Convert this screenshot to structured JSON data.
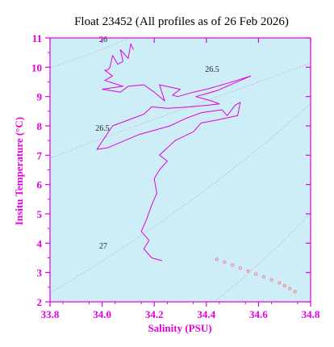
{
  "chart_data": {
    "type": "line",
    "title": "Float 23452  (All profiles as of 26 Feb 2026)",
    "xlabel": "Salinity (PSU)",
    "ylabel": "Insitu Temperature (°C)",
    "xlim": [
      33.8,
      34.8
    ],
    "ylim": [
      2,
      11
    ],
    "xticks": [
      "33.8",
      "34.0",
      "34.2",
      "34.4",
      "34.6",
      "34.8"
    ],
    "yticks": [
      "2",
      "3",
      "4",
      "5",
      "6",
      "7",
      "8",
      "9",
      "10",
      "11"
    ],
    "grid": false,
    "contour_labels": [
      "26",
      "26.5",
      "26.5",
      "27"
    ],
    "series": [
      {
        "kind": "line",
        "points": [
          [
            34.12,
            10.6
          ],
          [
            34.11,
            10.8
          ],
          [
            34.1,
            10.3
          ],
          [
            34.07,
            10.6
          ],
          [
            34.08,
            10.2
          ],
          [
            34.06,
            10.1
          ],
          [
            34.04,
            10.4
          ],
          [
            34.03,
            10.0
          ],
          [
            34.02,
            9.9
          ],
          [
            34.01,
            9.9
          ],
          [
            34.04,
            9.7
          ],
          [
            34.01,
            9.55
          ],
          [
            34.08,
            9.35
          ],
          [
            34.0,
            9.25
          ],
          [
            34.07,
            9.15
          ],
          [
            34.1,
            9.35
          ],
          [
            34.16,
            9.4
          ],
          [
            34.2,
            9.15
          ],
          [
            34.24,
            8.85
          ],
          [
            34.22,
            9.4
          ],
          [
            34.3,
            9.25
          ],
          [
            34.27,
            9.05
          ],
          [
            34.29,
            9.0
          ],
          [
            34.35,
            9.15
          ],
          [
            34.4,
            9.25
          ],
          [
            34.48,
            9.45
          ],
          [
            34.57,
            9.7
          ],
          [
            34.44,
            9.2
          ],
          [
            34.36,
            9.0
          ],
          [
            34.42,
            8.85
          ],
          [
            34.45,
            8.75
          ],
          [
            34.4,
            8.7
          ],
          [
            34.34,
            8.65
          ],
          [
            34.25,
            8.6
          ],
          [
            34.19,
            8.65
          ],
          [
            34.16,
            8.4
          ],
          [
            34.04,
            8.0
          ],
          [
            33.98,
            7.2
          ],
          [
            34.02,
            7.25
          ],
          [
            34.06,
            7.4
          ],
          [
            34.14,
            7.7
          ],
          [
            34.2,
            7.85
          ],
          [
            34.26,
            8.0
          ],
          [
            34.32,
            8.25
          ],
          [
            34.38,
            8.45
          ],
          [
            34.46,
            8.55
          ],
          [
            34.48,
            8.35
          ],
          [
            34.51,
            8.7
          ],
          [
            34.53,
            8.8
          ],
          [
            34.52,
            8.35
          ],
          [
            34.44,
            8.2
          ],
          [
            34.38,
            8.1
          ],
          [
            34.35,
            7.8
          ],
          [
            34.28,
            7.5
          ],
          [
            34.22,
            7.0
          ],
          [
            34.25,
            6.8
          ],
          [
            34.22,
            6.5
          ],
          [
            34.2,
            6.2
          ],
          [
            34.21,
            5.7
          ],
          [
            34.19,
            5.3
          ],
          [
            34.17,
            4.8
          ],
          [
            34.15,
            4.4
          ],
          [
            34.18,
            4.1
          ],
          [
            34.16,
            3.8
          ],
          [
            34.19,
            3.5
          ],
          [
            34.23,
            3.4
          ]
        ]
      },
      {
        "kind": "points",
        "points": [
          [
            34.44,
            3.45
          ],
          [
            34.47,
            3.35
          ],
          [
            34.5,
            3.25
          ],
          [
            34.53,
            3.15
          ],
          [
            34.56,
            3.05
          ],
          [
            34.59,
            2.95
          ],
          [
            34.62,
            2.85
          ],
          [
            34.65,
            2.75
          ],
          [
            34.68,
            2.65
          ],
          [
            34.7,
            2.55
          ],
          [
            34.72,
            2.45
          ],
          [
            34.74,
            2.35
          ]
        ]
      }
    ]
  },
  "colors": {
    "axis": "#e000e0",
    "plot_background": "#cdeef6",
    "profile_line": "#e000e0",
    "deep_points": "#f08080",
    "contour": "#c8a8e0"
  }
}
